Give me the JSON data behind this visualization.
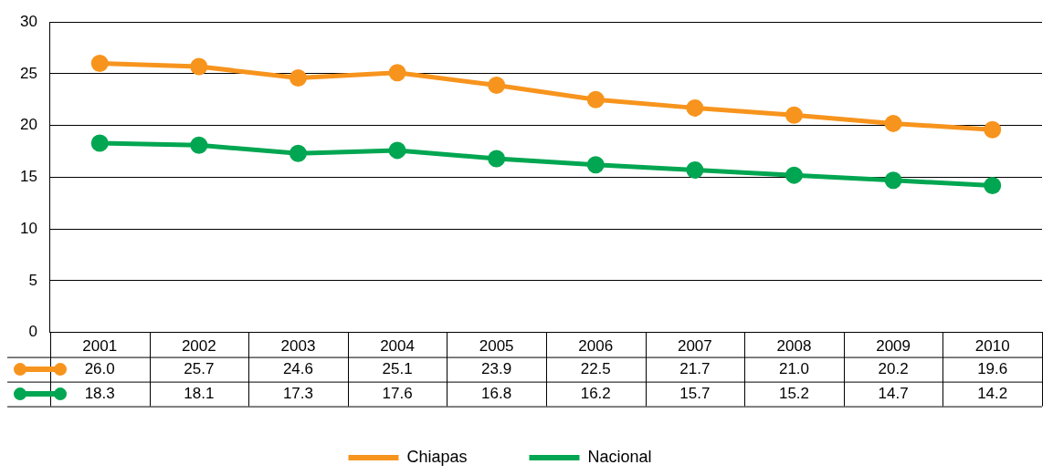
{
  "chart_data": {
    "type": "line",
    "categories": [
      "2001",
      "2002",
      "2003",
      "2004",
      "2005",
      "2006",
      "2007",
      "2008",
      "2009",
      "2010"
    ],
    "series": [
      {
        "name": "Chiapas",
        "color": "#f7941d",
        "values": [
          26.0,
          25.7,
          24.6,
          25.1,
          23.9,
          22.5,
          21.7,
          21.0,
          20.2,
          19.6
        ],
        "value_labels": [
          "26.0",
          "25.7",
          "24.6",
          "25.1",
          "23.9",
          "22.5",
          "21.7",
          "21.0",
          "20.2",
          "19.6"
        ]
      },
      {
        "name": "Nacional",
        "color": "#00a651",
        "values": [
          18.3,
          18.1,
          17.3,
          17.6,
          16.8,
          16.2,
          15.7,
          15.2,
          14.7,
          14.2
        ],
        "value_labels": [
          "18.3",
          "18.1",
          "17.3",
          "17.6",
          "16.8",
          "16.2",
          "15.7",
          "15.2",
          "14.7",
          "14.2"
        ]
      }
    ],
    "ylim": [
      0,
      30
    ],
    "yticks": [
      0,
      5,
      10,
      15,
      20,
      25,
      30
    ],
    "grid": "y",
    "legend": "bottom",
    "marker": "circle",
    "line_style": "solid"
  }
}
